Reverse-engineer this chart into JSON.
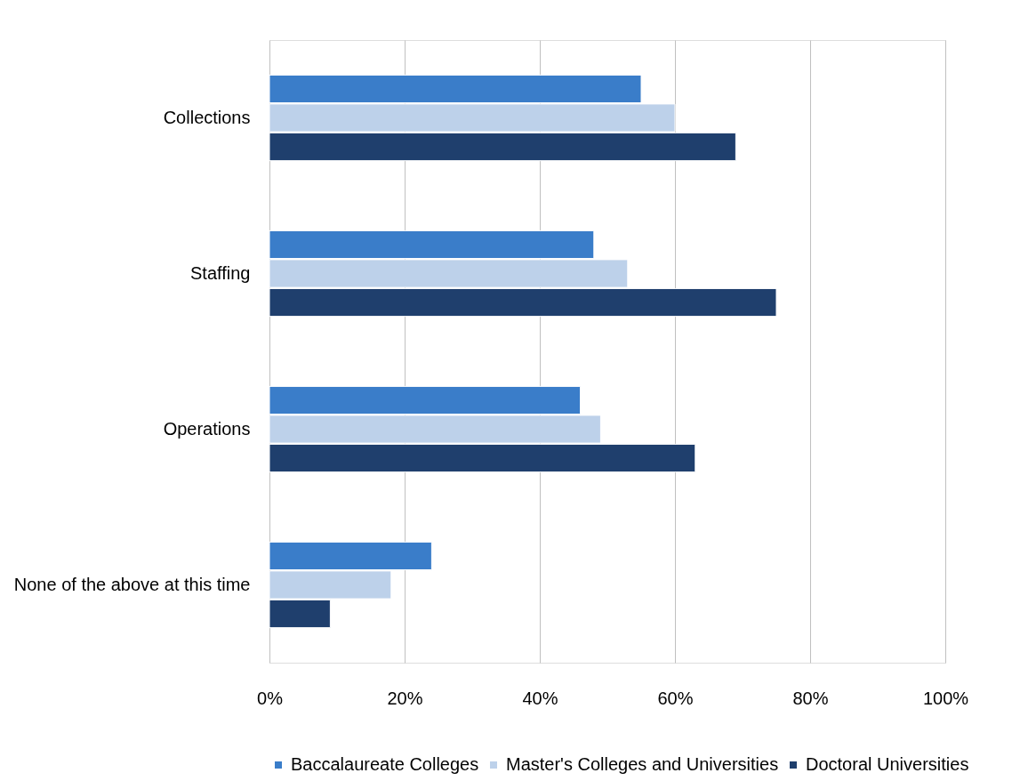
{
  "chart_data": {
    "type": "bar",
    "orientation": "horizontal",
    "categories": [
      "Collections",
      "Staffing",
      "Operations",
      "None of the above at this time"
    ],
    "series": [
      {
        "name": "Baccalaureate Colleges",
        "color": "#3a7dc9",
        "values": [
          55,
          48,
          46,
          24
        ]
      },
      {
        "name": "Master's Colleges and Universities",
        "color": "#bdd1ea",
        "values": [
          60,
          53,
          49,
          18
        ]
      },
      {
        "name": "Doctoral Universities",
        "color": "#1f3f6d",
        "values": [
          69,
          75,
          63,
          9
        ]
      }
    ],
    "xlim": [
      0,
      100
    ],
    "xticks": [
      {
        "value": 0,
        "label": "0%"
      },
      {
        "value": 20,
        "label": "20%"
      },
      {
        "value": 40,
        "label": "40%"
      },
      {
        "value": 60,
        "label": "60%"
      },
      {
        "value": 80,
        "label": "80%"
      },
      {
        "value": 100,
        "label": "100%"
      }
    ],
    "grid": "x",
    "legend": "bottom"
  }
}
